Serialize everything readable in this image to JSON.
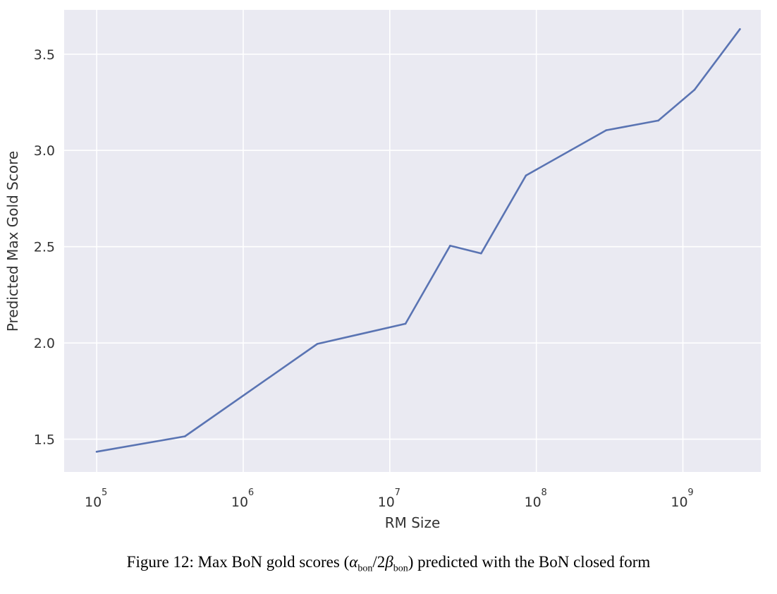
{
  "chart_data": {
    "type": "line",
    "xlabel": "RM Size",
    "ylabel": "Predicted Max Gold Score",
    "x_scale": "log",
    "xlim": [
      60000,
      3400000000
    ],
    "ylim": [
      1.33,
      3.73
    ],
    "grid": true,
    "x_ticks": [
      {
        "value": 100000,
        "base": "10",
        "exp": "5"
      },
      {
        "value": 1000000,
        "base": "10",
        "exp": "6"
      },
      {
        "value": 10000000,
        "base": "10",
        "exp": "7"
      },
      {
        "value": 100000000,
        "base": "10",
        "exp": "8"
      },
      {
        "value": 1000000000,
        "base": "10",
        "exp": "9"
      }
    ],
    "y_ticks": [
      {
        "value": 1.5,
        "label": "1.5"
      },
      {
        "value": 2.0,
        "label": "2.0"
      },
      {
        "value": 2.5,
        "label": "2.5"
      },
      {
        "value": 3.0,
        "label": "3.0"
      },
      {
        "value": 3.5,
        "label": "3.5"
      }
    ],
    "series": [
      {
        "color": "#5a74b3",
        "x": [
          100000,
          400000,
          3200000,
          12800000,
          25800000,
          42000000,
          85000000,
          300000000,
          680000000,
          1200000000,
          2450000000
        ],
        "y": [
          1.435,
          1.515,
          1.995,
          2.1,
          2.505,
          2.465,
          2.87,
          3.105,
          3.155,
          3.315,
          3.63
        ]
      }
    ]
  },
  "caption": {
    "prefix": "Figure 12: Max BoN gold scores (",
    "alpha": "α",
    "alpha_sub": "bon",
    "slash_two": "/2",
    "beta": "β",
    "beta_sub": "bon",
    "suffix": ") predicted with the BoN closed form"
  },
  "colors": {
    "plot_background": "#eaeaf2",
    "grid": "#ffffff",
    "line": "#5a74b3"
  }
}
